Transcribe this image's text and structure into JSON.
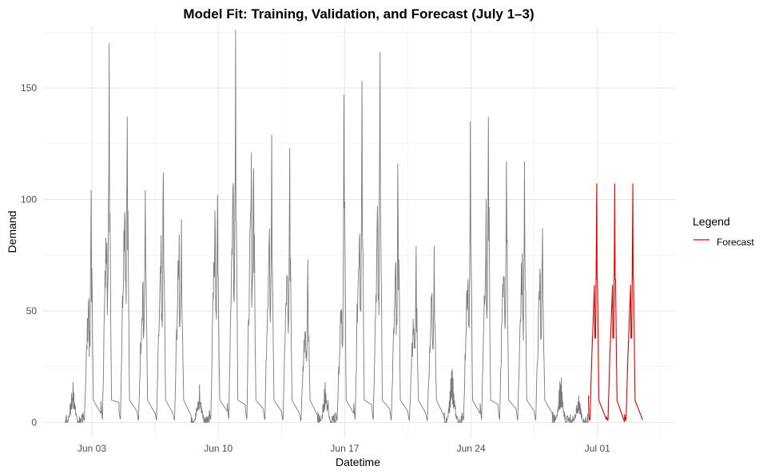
{
  "chart_data": {
    "type": "line",
    "title": "Model Fit: Training, Validation, and Forecast (July 1–3)",
    "xlabel": "Datetime",
    "ylabel": "Demand",
    "x_ticks": [
      {
        "label": "Jun 03",
        "day": 3
      },
      {
        "label": "Jun 10",
        "day": 10
      },
      {
        "label": "Jun 17",
        "day": 17
      },
      {
        "label": "Jun 24",
        "day": 24
      },
      {
        "label": "Jul 01",
        "day": 31
      }
    ],
    "y_ticks": [
      0,
      50,
      100,
      150
    ],
    "ylim": [
      -7,
      178
    ],
    "x_range_days": [
      0.3,
      35.3
    ],
    "grid": true,
    "legend": {
      "title": "Legend",
      "position": "right",
      "entries": [
        {
          "name": "Forecast",
          "color": "#e00000"
        }
      ]
    },
    "colors": {
      "history": "#7a7a7a",
      "forecast": "#e00000"
    },
    "series": [
      {
        "role": "history",
        "color": "#7a7a7a",
        "days": [
          {
            "day": 2,
            "peaks": [
              18,
              12
            ],
            "low": true
          },
          {
            "day": 3,
            "peaks": [
              104,
              58
            ],
            "base": 4
          },
          {
            "day": 4,
            "peaks": [
              170,
              97
            ],
            "base": 9
          },
          {
            "day": 5,
            "peaks": [
              137,
              108
            ],
            "base": 5
          },
          {
            "day": 6,
            "peaks": [
              104,
              66
            ],
            "base": 4
          },
          {
            "day": 7,
            "peaks": [
              112,
              73
            ],
            "base": 4
          },
          {
            "day": 8,
            "peaks": [
              91,
              81
            ],
            "base": 3
          },
          {
            "day": 9,
            "peaks": [
              17,
              12
            ],
            "low": true
          },
          {
            "day": 10,
            "peaks": [
              102,
              92
            ],
            "base": 5
          },
          {
            "day": 11,
            "peaks": [
              176,
              110
            ],
            "base": 8
          },
          {
            "day": 12,
            "peaks": [
              121,
              104
            ],
            "base": 6
          },
          {
            "day": 13,
            "peaks": [
              129,
              88
            ],
            "base": 5
          },
          {
            "day": 14,
            "peaks": [
              123,
              73
            ],
            "base": 4
          },
          {
            "day": 15,
            "peaks": [
              73,
              49
            ],
            "base": 3
          },
          {
            "day": 16,
            "peaks": [
              18,
              9
            ],
            "low": true
          },
          {
            "day": 17,
            "peaks": [
              147,
              55
            ],
            "base": 4
          },
          {
            "day": 18,
            "peaks": [
              153,
              95
            ],
            "base": 8
          },
          {
            "day": 19,
            "peaks": [
              166,
              92
            ],
            "base": 6
          },
          {
            "day": 20,
            "peaks": [
              116,
              68
            ],
            "base": 5
          },
          {
            "day": 21,
            "peaks": [
              79,
              50
            ],
            "base": 4
          },
          {
            "day": 22,
            "peaks": [
              79,
              59
            ],
            "base": 3
          },
          {
            "day": 23,
            "peaks": [
              24,
              14
            ],
            "low": true
          },
          {
            "day": 24,
            "peaks": [
              135,
              71
            ],
            "base": 4
          },
          {
            "day": 25,
            "peaks": [
              137,
              88
            ],
            "base": 8
          },
          {
            "day": 26,
            "peaks": [
              117,
              78
            ],
            "base": 6
          },
          {
            "day": 27,
            "peaks": [
              117,
              74
            ],
            "base": 5
          },
          {
            "day": 28,
            "peaks": [
              87,
              69
            ],
            "base": 4
          },
          {
            "day": 29,
            "peaks": [
              20,
              11
            ],
            "low": true
          },
          {
            "day": 30,
            "peaks": [
              12,
              6
            ],
            "low": true
          }
        ]
      },
      {
        "role": "forecast",
        "name": "Forecast",
        "color": "#e00000",
        "days": [
          {
            "day": 31,
            "peaks": [
              107,
              63
            ],
            "base": 3
          },
          {
            "day": 32,
            "peaks": [
              107,
              63
            ],
            "base": 2
          },
          {
            "day": 33,
            "peaks": [
              107,
              63
            ],
            "base": 3
          }
        ]
      }
    ]
  }
}
